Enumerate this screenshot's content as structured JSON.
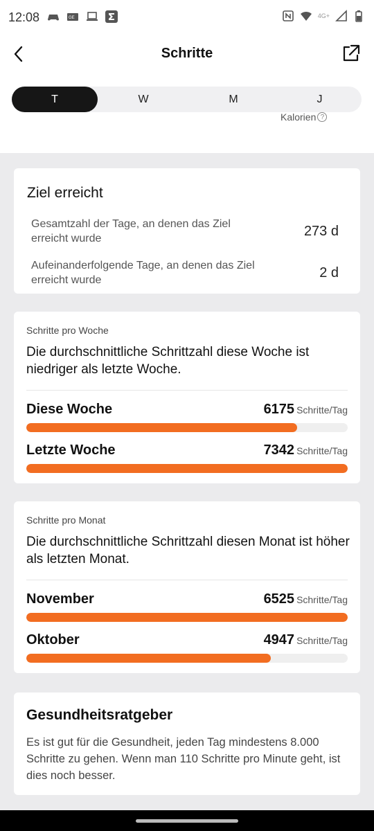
{
  "status": {
    "time": "12:08",
    "network": "4G+"
  },
  "header": {
    "title": "Schritte"
  },
  "tabs": [
    {
      "label": "T",
      "active": true
    },
    {
      "label": "W",
      "active": false
    },
    {
      "label": "M",
      "active": false
    },
    {
      "label": "J",
      "active": false
    }
  ],
  "kalorien_label": "Kalorien",
  "goal": {
    "title": "Ziel erreicht",
    "rows": [
      {
        "label": "Gesamtzahl der Tage, an denen das Ziel erreicht wurde",
        "value": "273 d"
      },
      {
        "label": "Aufeinanderfolgende Tage, an denen das Ziel erreicht wurde",
        "value": "2 d"
      }
    ]
  },
  "week": {
    "small": "Schritte pro Woche",
    "text": "Die durchschnittliche Schrittzahl diese Woche ist niedriger als letzte Woche.",
    "bars": [
      {
        "name": "Diese Woche",
        "value": "6175",
        "unit": "Schritte/Tag",
        "fill": 0.843
      },
      {
        "name": "Letzte Woche",
        "value": "7342",
        "unit": "Schritte/Tag",
        "fill": 1.0
      }
    ]
  },
  "month": {
    "small": "Schritte pro Monat",
    "text": "Die durchschnittliche Schrittzahl diesen Monat ist höher als letzten Monat.",
    "bars": [
      {
        "name": "November",
        "value": "6525",
        "unit": "Schritte/Tag",
        "fill": 1.0
      },
      {
        "name": "Oktober",
        "value": "4947",
        "unit": "Schritte/Tag",
        "fill": 0.761
      }
    ]
  },
  "advice": {
    "title": "Gesundheitsratgeber",
    "text": "Es ist gut für die Gesundheit, jeden Tag mindestens 8.000 Schritte zu gehen. Wenn man 110 Schritte pro Minute geht, ist dies noch besser."
  },
  "colors": {
    "accent": "#f26d21",
    "active_tab": "#161616",
    "background": "#ebebed"
  }
}
